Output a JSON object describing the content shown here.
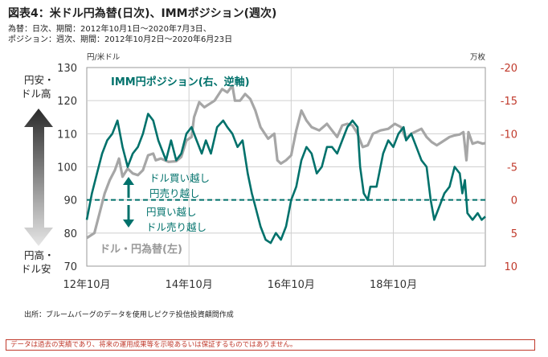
{
  "header": {
    "title": "図表4：米ドル円為替(日次)、IMMポジション(週次)",
    "subtitle_line1": "為替：日次、期間：2012年10月1日～2020年7月3日、",
    "subtitle_line2": "ポジション：週次、期間：2012年10月2日～2020年6月23日"
  },
  "chart_data": {
    "type": "line",
    "left_axis_unit": "円/米ドル",
    "right_axis_unit": "万枚",
    "left_ylim": [
      70,
      130
    ],
    "left_ticks": [
      70,
      80,
      90,
      100,
      110,
      120,
      130
    ],
    "right_ylim": [
      10,
      -20
    ],
    "right_ticks": [
      10,
      5,
      0,
      -5,
      -10,
      -15,
      -20
    ],
    "right_tick_labels": [
      "10",
      "5",
      "0",
      "-5",
      "-10",
      "-15",
      "-20"
    ],
    "x_range": [
      2012.75,
      2020.55
    ],
    "x_ticks": [
      {
        "x": 2012.75,
        "label": "12年10月"
      },
      {
        "x": 2014.75,
        "label": "14年10月"
      },
      {
        "x": 2016.75,
        "label": "16年10月"
      },
      {
        "x": 2018.75,
        "label": "18年10月"
      }
    ],
    "grid": true,
    "zero_line_right_axis": 0,
    "series": [
      {
        "name": "ドル・円為替(左)",
        "axis": "left",
        "color": "#a6a6a6",
        "points": [
          [
            2012.75,
            78.5
          ],
          [
            2012.9,
            80
          ],
          [
            2013.0,
            86
          ],
          [
            2013.1,
            92
          ],
          [
            2013.2,
            96
          ],
          [
            2013.3,
            99
          ],
          [
            2013.38,
            102.5
          ],
          [
            2013.45,
            97
          ],
          [
            2013.55,
            99.5
          ],
          [
            2013.65,
            98
          ],
          [
            2013.75,
            97.5
          ],
          [
            2013.85,
            99
          ],
          [
            2013.95,
            103.5
          ],
          [
            2014.05,
            104
          ],
          [
            2014.1,
            102
          ],
          [
            2014.2,
            102.5
          ],
          [
            2014.35,
            101.5
          ],
          [
            2014.5,
            101.7
          ],
          [
            2014.6,
            103
          ],
          [
            2014.7,
            108
          ],
          [
            2014.8,
            109
          ],
          [
            2014.85,
            115
          ],
          [
            2014.95,
            119.5
          ],
          [
            2015.05,
            118
          ],
          [
            2015.15,
            119
          ],
          [
            2015.25,
            120
          ],
          [
            2015.4,
            123.5
          ],
          [
            2015.5,
            122.5
          ],
          [
            2015.6,
            124.5
          ],
          [
            2015.65,
            120
          ],
          [
            2015.75,
            120
          ],
          [
            2015.85,
            122
          ],
          [
            2015.95,
            120.5
          ],
          [
            2016.05,
            117
          ],
          [
            2016.15,
            112
          ],
          [
            2016.3,
            108.5
          ],
          [
            2016.42,
            110
          ],
          [
            2016.48,
            102
          ],
          [
            2016.55,
            101
          ],
          [
            2016.65,
            102
          ],
          [
            2016.75,
            103.5
          ],
          [
            2016.85,
            111
          ],
          [
            2016.95,
            117
          ],
          [
            2017.05,
            114
          ],
          [
            2017.15,
            112
          ],
          [
            2017.3,
            111
          ],
          [
            2017.45,
            113
          ],
          [
            2017.55,
            111
          ],
          [
            2017.65,
            109
          ],
          [
            2017.75,
            112.5
          ],
          [
            2017.85,
            113
          ],
          [
            2017.95,
            112.5
          ],
          [
            2018.05,
            110
          ],
          [
            2018.15,
            106
          ],
          [
            2018.25,
            106.5
          ],
          [
            2018.35,
            110
          ],
          [
            2018.5,
            111
          ],
          [
            2018.65,
            111.5
          ],
          [
            2018.78,
            113
          ],
          [
            2018.9,
            112
          ],
          [
            2018.98,
            109
          ],
          [
            2019.0,
            108.5
          ],
          [
            2019.1,
            110
          ],
          [
            2019.3,
            111.5
          ],
          [
            2019.4,
            109
          ],
          [
            2019.5,
            107.5
          ],
          [
            2019.6,
            106.5
          ],
          [
            2019.7,
            107.5
          ],
          [
            2019.85,
            109
          ],
          [
            2019.95,
            109.5
          ],
          [
            2020.05,
            109.8
          ],
          [
            2020.12,
            110.5
          ],
          [
            2020.18,
            102
          ],
          [
            2020.22,
            110.5
          ],
          [
            2020.3,
            107
          ],
          [
            2020.4,
            107.5
          ],
          [
            2020.5,
            107
          ],
          [
            2020.55,
            107.2
          ]
        ]
      },
      {
        "name": "IMM円ポジション(右、逆軸)",
        "axis": "right",
        "color": "#00716b",
        "points": [
          [
            2012.75,
            3
          ],
          [
            2012.85,
            -1
          ],
          [
            2012.95,
            -4
          ],
          [
            2013.05,
            -7
          ],
          [
            2013.15,
            -9
          ],
          [
            2013.25,
            -10
          ],
          [
            2013.35,
            -12
          ],
          [
            2013.45,
            -8
          ],
          [
            2013.55,
            -5
          ],
          [
            2013.65,
            -7
          ],
          [
            2013.75,
            -8
          ],
          [
            2013.85,
            -10
          ],
          [
            2013.95,
            -13
          ],
          [
            2014.05,
            -12
          ],
          [
            2014.15,
            -9
          ],
          [
            2014.3,
            -6
          ],
          [
            2014.4,
            -9
          ],
          [
            2014.5,
            -6
          ],
          [
            2014.6,
            -7
          ],
          [
            2014.7,
            -10
          ],
          [
            2014.8,
            -11
          ],
          [
            2014.9,
            -9
          ],
          [
            2015.0,
            -7
          ],
          [
            2015.08,
            -9
          ],
          [
            2015.18,
            -7
          ],
          [
            2015.3,
            -11
          ],
          [
            2015.42,
            -12
          ],
          [
            2015.5,
            -11
          ],
          [
            2015.6,
            -10
          ],
          [
            2015.7,
            -8
          ],
          [
            2015.8,
            -9
          ],
          [
            2015.9,
            -4
          ],
          [
            2015.98,
            -1
          ],
          [
            2016.05,
            1
          ],
          [
            2016.15,
            4
          ],
          [
            2016.25,
            6
          ],
          [
            2016.35,
            6.5
          ],
          [
            2016.45,
            5
          ],
          [
            2016.55,
            6
          ],
          [
            2016.65,
            4
          ],
          [
            2016.75,
            0
          ],
          [
            2016.85,
            -2
          ],
          [
            2016.95,
            -6
          ],
          [
            2017.05,
            -8
          ],
          [
            2017.15,
            -7
          ],
          [
            2017.25,
            -4
          ],
          [
            2017.35,
            -5
          ],
          [
            2017.45,
            -8
          ],
          [
            2017.55,
            -8
          ],
          [
            2017.65,
            -7
          ],
          [
            2017.75,
            -9
          ],
          [
            2017.85,
            -11
          ],
          [
            2017.95,
            -12
          ],
          [
            2018.05,
            -11
          ],
          [
            2018.1,
            -5
          ],
          [
            2018.17,
            -1
          ],
          [
            2018.25,
            0
          ],
          [
            2018.3,
            -2
          ],
          [
            2018.42,
            -2
          ],
          [
            2018.55,
            -7
          ],
          [
            2018.65,
            -9
          ],
          [
            2018.75,
            -8
          ],
          [
            2018.85,
            -10
          ],
          [
            2018.95,
            -11
          ],
          [
            2019.0,
            -9
          ],
          [
            2019.1,
            -10
          ],
          [
            2019.2,
            -8
          ],
          [
            2019.3,
            -6
          ],
          [
            2019.4,
            -5
          ],
          [
            2019.48,
            0
          ],
          [
            2019.55,
            3
          ],
          [
            2019.65,
            1
          ],
          [
            2019.75,
            -1
          ],
          [
            2019.85,
            -2
          ],
          [
            2019.95,
            -5
          ],
          [
            2020.05,
            -4
          ],
          [
            2020.1,
            -1
          ],
          [
            2020.15,
            -3
          ],
          [
            2020.2,
            2
          ],
          [
            2020.3,
            3
          ],
          [
            2020.4,
            2
          ],
          [
            2020.48,
            3
          ],
          [
            2020.55,
            2.5
          ]
        ]
      }
    ],
    "annotations": {
      "series_label_right": "IMM円ポジション(右、逆軸)",
      "series_label_left": "ドル・円為替(左)",
      "net_long_dollar": "ドル買い越し",
      "net_short_yen": "円売り越し",
      "net_long_yen": "円買い越し",
      "net_short_dollar": "ドル売り越し",
      "yen_weak_top": "円安・",
      "dollar_strong_top": "ドル高",
      "yen_strong_bottom": "円高・",
      "dollar_weak_bottom": "ドル安"
    }
  },
  "footer": {
    "source": "出所：ブルームバーグのデータを使用しピクテ投信投資顧問作成",
    "disclaimer": "データは過去の実績であり、将来の運用成果等を示唆あるいは保証するものではありません。"
  }
}
